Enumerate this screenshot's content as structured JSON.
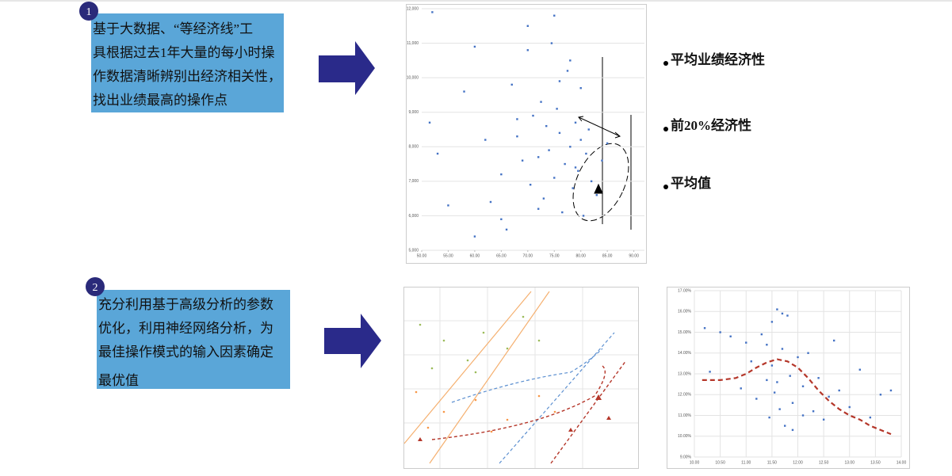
{
  "steps": [
    {
      "number": "1",
      "lines": [
        "基于大数据、“等经济线”工",
        "具根据过去1年大量的每小时操",
        "作数据清晰辨别出经济相关性，",
        "找出业绩最高的操作点"
      ]
    },
    {
      "number": "2",
      "lines": [
        "充分利用基于高级分析的参数",
        "优化，利用神经网络分析，为",
        "最佳操作模式的输入因素确定",
        "最优值"
      ]
    }
  ],
  "bullets": [
    "平均业绩经济性",
    "前20%经济性",
    "平均值"
  ],
  "chart_data": [
    {
      "type": "scatter",
      "xlim": [
        50,
        92
      ],
      "ylim": [
        5000,
        12000
      ],
      "xticks": [
        {
          "value": 50,
          "label": "50.00"
        },
        {
          "value": 55,
          "label": "55.00"
        },
        {
          "value": 60,
          "label": "60.00"
        },
        {
          "value": 65,
          "label": "65.00"
        },
        {
          "value": 70,
          "label": "70.00"
        },
        {
          "value": 75,
          "label": "75.00"
        },
        {
          "value": 80,
          "label": "80.00"
        },
        {
          "value": 85,
          "label": "85.00"
        },
        {
          "value": 90,
          "label": "90.00"
        }
      ],
      "yticks": [
        {
          "value": 5000,
          "label": "5,000"
        },
        {
          "value": 6000,
          "label": "6,000"
        },
        {
          "value": 7000,
          "label": "7,000"
        },
        {
          "value": 8000,
          "label": "8,000"
        },
        {
          "value": 9000,
          "label": "9,000"
        },
        {
          "value": 10000,
          "label": "10,000"
        },
        {
          "value": 11000,
          "label": "11,000"
        },
        {
          "value": 12000,
          "label": "12,000"
        }
      ],
      "grid": "y",
      "series": [
        {
          "type": "scatter",
          "color": "#4472c4",
          "x": [
            52,
            51.5,
            53,
            55,
            58,
            60,
            62,
            63,
            65,
            66,
            67,
            68,
            69,
            70,
            70.5,
            71,
            72,
            72.5,
            73,
            73.5,
            74,
            74.5,
            75,
            75.5,
            76,
            76.5,
            77,
            77.5,
            78,
            78.5,
            79,
            79.5,
            80,
            80.5,
            81,
            81.5,
            82,
            83,
            84,
            85,
            60,
            65,
            70,
            75,
            78,
            80,
            72,
            68,
            76,
            79
          ],
          "y": [
            11900,
            8700,
            7800,
            6300,
            9600,
            10900,
            8200,
            6400,
            7200,
            5600,
            9800,
            8300,
            7600,
            10800,
            6900,
            8900,
            7700,
            9300,
            6500,
            8600,
            7900,
            11000,
            7100,
            9100,
            8400,
            6100,
            7500,
            10200,
            8000,
            6800,
            8700,
            7300,
            8200,
            6000,
            7800,
            8500,
            7000,
            6600,
            7600,
            8100,
            5400,
            5900,
            11500,
            11800,
            10500,
            9700,
            6200,
            8800,
            9900,
            7400
          ]
        }
      ]
    },
    {
      "type": "scatter",
      "xlim": [
        10,
        14
      ],
      "ylim": [
        9,
        17
      ],
      "xticks": [
        {
          "value": 10,
          "label": "10.00"
        },
        {
          "value": 10.5,
          "label": "10.50"
        },
        {
          "value": 11,
          "label": "11.00"
        },
        {
          "value": 11.5,
          "label": "11.50"
        },
        {
          "value": 12,
          "label": "12.00"
        },
        {
          "value": 12.5,
          "label": "12.50"
        },
        {
          "value": 13,
          "label": "13.00"
        },
        {
          "value": 13.5,
          "label": "13.50"
        },
        {
          "value": 14,
          "label": "14.00"
        }
      ],
      "yticks": [
        {
          "value": 9,
          "label": "9.00%"
        },
        {
          "value": 10,
          "label": "10.00%"
        },
        {
          "value": 11,
          "label": "11.00%"
        },
        {
          "value": 12,
          "label": "12.00%"
        },
        {
          "value": 13,
          "label": "13.00%"
        },
        {
          "value": 14,
          "label": "14.00%"
        },
        {
          "value": 15,
          "label": "15.00%"
        },
        {
          "value": 16,
          "label": "16.00%"
        },
        {
          "value": 17,
          "label": "17.00%"
        }
      ],
      "grid": "both",
      "series": [
        {
          "type": "scatter",
          "color": "#4472c4",
          "x": [
            10.2,
            10.3,
            10.5,
            10.7,
            10.9,
            11.0,
            11.1,
            11.2,
            11.3,
            11.4,
            11.45,
            11.5,
            11.55,
            11.6,
            11.65,
            11.7,
            11.75,
            11.8,
            11.85,
            11.9,
            12.0,
            12.1,
            12.2,
            12.3,
            12.4,
            12.5,
            12.6,
            12.7,
            12.8,
            13.0,
            13.2,
            13.4,
            13.6,
            13.8,
            11.5,
            11.6,
            11.7,
            11.9,
            12.1,
            11.4
          ],
          "y": [
            15.2,
            13.1,
            15.0,
            14.8,
            12.3,
            14.5,
            13.6,
            11.8,
            14.9,
            12.7,
            10.9,
            15.5,
            12.1,
            16.1,
            11.3,
            14.2,
            10.5,
            15.8,
            12.9,
            11.6,
            13.8,
            12.4,
            14.0,
            11.2,
            12.8,
            10.8,
            11.9,
            14.6,
            12.2,
            11.4,
            13.2,
            10.9,
            12.0,
            12.2,
            13.4,
            12.6,
            15.9,
            10.3,
            11.0,
            14.4
          ]
        },
        {
          "type": "line",
          "color": "#b5372a",
          "dashed": true,
          "x": [
            10.15,
            10.5,
            10.8,
            11.0,
            11.2,
            11.4,
            11.6,
            11.8,
            12.0,
            12.2,
            12.4,
            12.6,
            12.8,
            13.0,
            13.2,
            13.4,
            13.6,
            13.8
          ],
          "y": [
            12.7,
            12.7,
            12.8,
            13.0,
            13.3,
            13.55,
            13.7,
            13.6,
            13.3,
            12.8,
            12.2,
            11.7,
            11.3,
            11.0,
            10.8,
            10.5,
            10.3,
            10.1
          ]
        }
      ]
    }
  ]
}
